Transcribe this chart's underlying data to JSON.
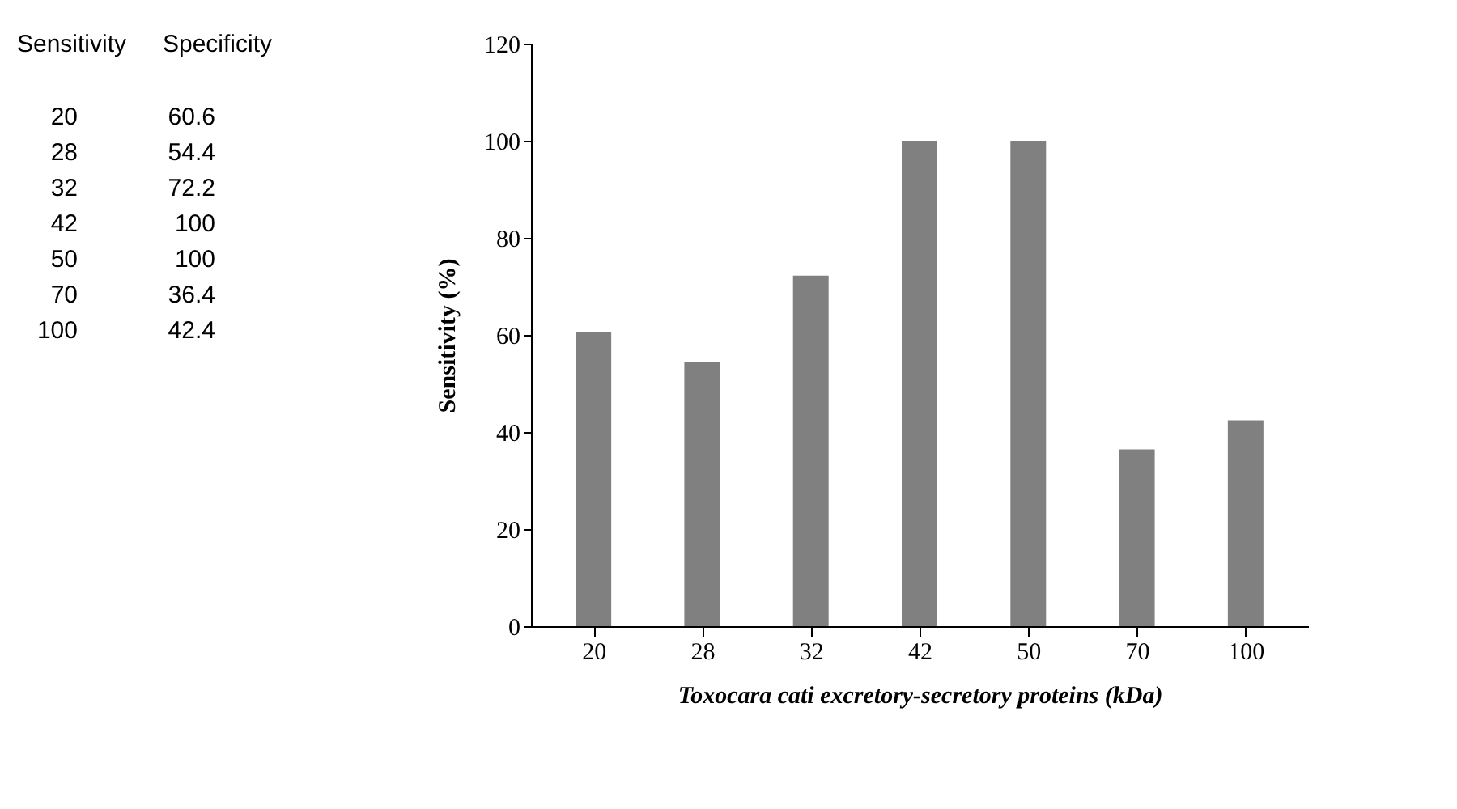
{
  "chart_data": [
    {
      "type": "other",
      "annotations": [
        "Sensitivity",
        "Specificity",
        "20",
        "60.6",
        "28",
        "54.4",
        "32",
        "72.2",
        "42",
        "100",
        "50",
        "100",
        "70",
        "36.4",
        "100",
        "42.4"
      ]
    },
    {
      "type": "bar",
      "categories": [
        "20",
        "28",
        "32",
        "42",
        "50",
        "70",
        "100"
      ],
      "values": [
        60.6,
        54.4,
        72.2,
        100,
        100,
        36.4,
        42.4
      ],
      "color": "#808080",
      "ylim": [
        0,
        120
      ],
      "yticks": [
        0,
        20,
        40,
        60,
        80,
        100,
        120
      ],
      "xlabel": "Toxocara cati excretory-secretory proteins  (kDa)",
      "ylabel": "Sensitivity (%)",
      "grid": false
    }
  ]
}
